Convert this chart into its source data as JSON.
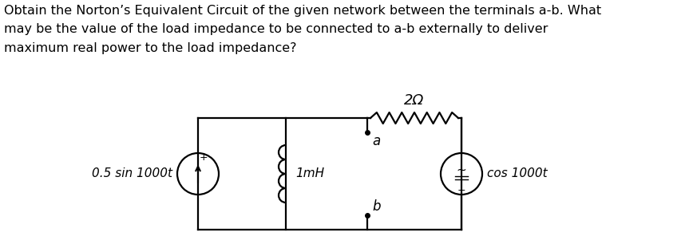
{
  "title_text": "Obtain the Norton’s Equivalent Circuit of the given network between the terminals a-b. What\nmay be the value of the load impedance to be connected to a-b externally to deliver\nmaximum real power to the load impedance?",
  "text_fontsize": 11.5,
  "bg_color": "#ffffff",
  "circuit": {
    "left_source_label": "0.5 sin 1000t",
    "inductor_label": "1mH",
    "resistor_label": "2Ω",
    "right_source_label": "cos 1000t",
    "terminal_a": "a",
    "terminal_b": "b"
  }
}
